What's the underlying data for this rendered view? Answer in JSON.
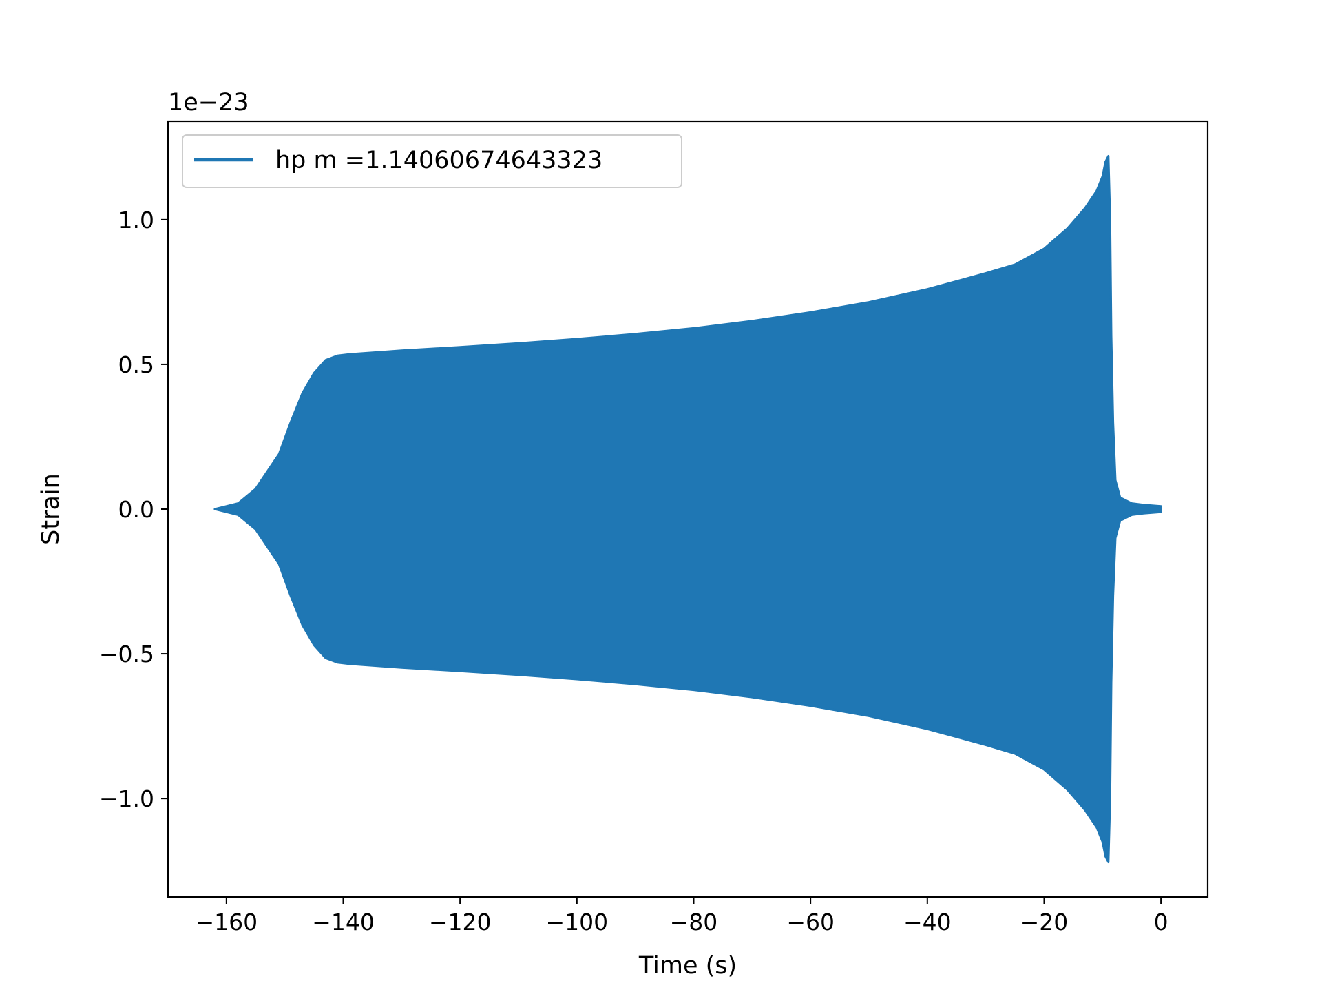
{
  "chart_data": {
    "type": "line",
    "title": "",
    "xlabel": "Time (s)",
    "ylabel": "Strain",
    "y_offset_label": "1e−23",
    "xlim": [
      -170,
      8
    ],
    "ylim": [
      -1.34,
      1.34
    ],
    "grid": false,
    "legend_position": "upper-left",
    "x_ticks": [
      -160,
      -140,
      -120,
      -100,
      -80,
      -60,
      -40,
      -20,
      0
    ],
    "x_tick_labels": [
      "−160",
      "−140",
      "−120",
      "−100",
      "−80",
      "−60",
      "−40",
      "−20",
      "0"
    ],
    "y_ticks": [
      -1.0,
      -0.5,
      0.0,
      0.5,
      1.0
    ],
    "y_tick_labels": [
      "−1.0",
      "−0.5",
      "0.0",
      "0.5",
      "1.0"
    ],
    "series": [
      {
        "name": "hp m =1.14060674643323",
        "color": "#1f77b4",
        "envelope_upper": {
          "x": [
            -162,
            -158,
            -155,
            -153,
            -151,
            -149,
            -147,
            -145,
            -143,
            -141,
            -139,
            -130,
            -120,
            -110,
            -100,
            -90,
            -80,
            -70,
            -60,
            -50,
            -40,
            -30,
            -25,
            -20,
            -16,
            -13,
            -11,
            -10,
            -9.5,
            -9,
            -8.7,
            -8.5,
            -8.2,
            -7.8,
            -7.0,
            -5.0,
            -3.0,
            0.0
          ],
          "y": [
            0.0,
            0.02,
            0.07,
            0.13,
            0.19,
            0.3,
            0.4,
            0.47,
            0.515,
            0.53,
            0.535,
            0.548,
            0.56,
            0.573,
            0.588,
            0.605,
            0.625,
            0.65,
            0.68,
            0.715,
            0.76,
            0.815,
            0.845,
            0.9,
            0.97,
            1.04,
            1.1,
            1.15,
            1.2,
            1.22,
            1.0,
            0.6,
            0.3,
            0.1,
            0.04,
            0.02,
            0.015,
            0.01
          ]
        },
        "envelope_lower": {
          "x": [
            -162,
            -158,
            -155,
            -153,
            -151,
            -149,
            -147,
            -145,
            -143,
            -141,
            -139,
            -130,
            -120,
            -110,
            -100,
            -90,
            -80,
            -70,
            -60,
            -50,
            -40,
            -30,
            -25,
            -20,
            -16,
            -13,
            -11,
            -10,
            -9.5,
            -9,
            -8.7,
            -8.5,
            -8.2,
            -7.8,
            -7.0,
            -5.0,
            -3.0,
            0.0
          ],
          "y": [
            0.0,
            -0.02,
            -0.07,
            -0.13,
            -0.19,
            -0.3,
            -0.4,
            -0.47,
            -0.515,
            -0.53,
            -0.535,
            -0.548,
            -0.56,
            -0.573,
            -0.588,
            -0.605,
            -0.625,
            -0.65,
            -0.68,
            -0.715,
            -0.76,
            -0.815,
            -0.845,
            -0.9,
            -0.97,
            -1.04,
            -1.1,
            -1.15,
            -1.2,
            -1.22,
            -1.0,
            -0.6,
            -0.3,
            -0.1,
            -0.04,
            -0.02,
            -0.015,
            -0.01
          ]
        }
      }
    ]
  }
}
